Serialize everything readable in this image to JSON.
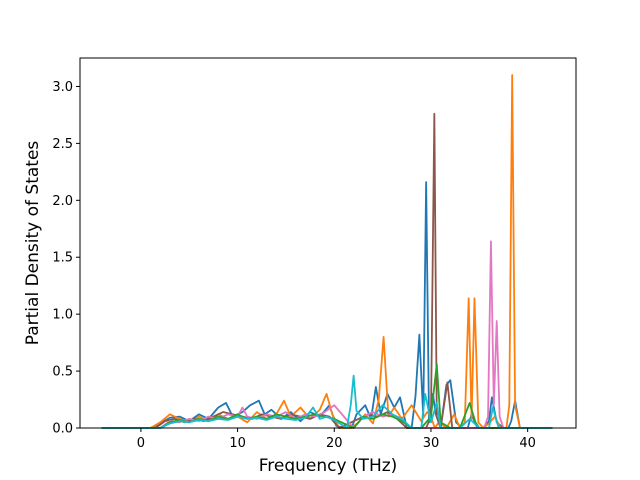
{
  "chart_data": {
    "type": "line",
    "title": "",
    "xlabel": "Frequency (THz)",
    "ylabel": "Partial Density of States",
    "xlim": [
      -6.3,
      45.0
    ],
    "ylim": [
      0.0,
      3.25
    ],
    "xticks": [
      0,
      10,
      20,
      30,
      40
    ],
    "yticks": [
      0.0,
      0.5,
      1.0,
      1.5,
      2.0,
      2.5,
      3.0
    ],
    "xtick_labels": [
      "0",
      "10",
      "20",
      "30",
      "40"
    ],
    "ytick_labels": [
      "0.0",
      "0.5",
      "1.0",
      "1.5",
      "2.0",
      "2.5",
      "3.0"
    ],
    "grid": false,
    "legend": "none",
    "series": [
      {
        "color": "#1f77b4",
        "x": [
          -4.0,
          1.0,
          2.0,
          3.0,
          4.0,
          5.0,
          6.0,
          7.0,
          8.0,
          8.8,
          9.5,
          10.5,
          11.3,
          12.2,
          12.8,
          13.5,
          14.5,
          15.5,
          16.5,
          17.5,
          18.5,
          19.5,
          20.2,
          21.0,
          21.8,
          22.3,
          23.2,
          23.8,
          24.3,
          24.8,
          25.5,
          26.2,
          26.8,
          27.5,
          28.0,
          28.4,
          28.8,
          29.2,
          29.5,
          29.8,
          30.2,
          30.5,
          31.0,
          31.6,
          32.0,
          32.6,
          33.2,
          33.8,
          34.2,
          34.8,
          35.4,
          36.0,
          36.3,
          36.8,
          37.5,
          38.0,
          38.3,
          38.7,
          39.2,
          40.0,
          42.5
        ],
        "y": [
          0.0,
          0.0,
          0.04,
          0.09,
          0.1,
          0.06,
          0.12,
          0.08,
          0.18,
          0.22,
          0.1,
          0.14,
          0.2,
          0.24,
          0.12,
          0.16,
          0.08,
          0.14,
          0.06,
          0.14,
          0.1,
          0.2,
          0.02,
          0.0,
          0.0,
          0.12,
          0.2,
          0.08,
          0.36,
          0.12,
          0.3,
          0.18,
          0.27,
          0.0,
          0.0,
          0.28,
          0.82,
          0.1,
          2.16,
          0.05,
          0.3,
          0.12,
          0.0,
          0.38,
          0.42,
          0.05,
          0.0,
          0.0,
          0.12,
          0.0,
          0.0,
          0.06,
          0.27,
          0.05,
          0.0,
          0.0,
          0.06,
          0.24,
          0.0,
          0.0,
          0.0
        ]
      },
      {
        "color": "#ff7f0e",
        "x": [
          -4.0,
          1.0,
          2.0,
          3.0,
          4.0,
          5.0,
          6.0,
          7.0,
          8.0,
          9.0,
          10.0,
          11.0,
          12.0,
          13.0,
          14.0,
          14.8,
          15.5,
          16.5,
          17.5,
          18.5,
          19.2,
          19.8,
          20.5,
          21.8,
          22.5,
          23.2,
          24.0,
          24.6,
          25.1,
          25.6,
          26.2,
          27.0,
          28.0,
          29.0,
          29.6,
          30.0,
          30.4,
          30.8,
          31.6,
          32.4,
          33.0,
          33.5,
          33.9,
          34.2,
          34.5,
          34.9,
          35.4,
          36.0,
          36.6,
          37.2,
          37.8,
          38.1,
          38.4,
          38.7,
          39.2,
          40.0,
          42.5
        ],
        "y": [
          0.0,
          0.0,
          0.05,
          0.12,
          0.08,
          0.05,
          0.1,
          0.06,
          0.12,
          0.08,
          0.1,
          0.05,
          0.14,
          0.08,
          0.12,
          0.24,
          0.1,
          0.18,
          0.08,
          0.16,
          0.3,
          0.12,
          0.0,
          0.0,
          0.05,
          0.12,
          0.04,
          0.25,
          0.8,
          0.1,
          0.18,
          0.08,
          0.2,
          0.06,
          0.14,
          0.1,
          0.0,
          0.05,
          0.0,
          0.12,
          0.0,
          0.05,
          1.14,
          0.08,
          1.14,
          0.05,
          0.0,
          0.04,
          0.1,
          0.0,
          0.0,
          0.2,
          3.1,
          0.2,
          0.0,
          0.0,
          0.0
        ]
      },
      {
        "color": "#8c564b",
        "x": [
          -4.0,
          1.5,
          2.5,
          3.5,
          4.5,
          5.5,
          6.5,
          7.5,
          8.5,
          9.5,
          10.5,
          11.5,
          12.5,
          13.5,
          14.5,
          15.5,
          16.5,
          17.5,
          18.5,
          19.5,
          20.5,
          22.5,
          23.5,
          24.5,
          25.5,
          26.5,
          27.5,
          28.5,
          29.5,
          30.0,
          30.35,
          30.6,
          31.0,
          31.7,
          32.2,
          33.0,
          34.0,
          35.0,
          36.0,
          37.0,
          38.0,
          40.0,
          42.5
        ],
        "y": [
          0.0,
          0.0,
          0.06,
          0.08,
          0.05,
          0.08,
          0.06,
          0.1,
          0.14,
          0.12,
          0.1,
          0.08,
          0.12,
          0.1,
          0.08,
          0.12,
          0.1,
          0.08,
          0.12,
          0.1,
          0.0,
          0.08,
          0.12,
          0.1,
          0.14,
          0.08,
          0.0,
          0.0,
          0.0,
          0.1,
          2.76,
          0.1,
          0.0,
          0.4,
          0.0,
          0.0,
          0.0,
          0.0,
          0.0,
          0.0,
          0.0,
          0.0,
          0.0
        ]
      },
      {
        "color": "#e377c2",
        "x": [
          -4.0,
          2.0,
          3.0,
          4.0,
          5.0,
          6.0,
          7.0,
          8.0,
          9.0,
          10.0,
          10.5,
          11.0,
          12.0,
          13.0,
          14.0,
          15.0,
          16.0,
          17.0,
          18.0,
          19.0,
          20.0,
          22.0,
          23.0,
          24.0,
          25.0,
          26.0,
          27.0,
          28.0,
          29.5,
          30.5,
          31.5,
          32.5,
          33.5,
          34.5,
          35.5,
          35.9,
          36.2,
          36.5,
          36.8,
          37.1,
          37.5,
          38.5,
          40.0,
          42.5
        ],
        "y": [
          0.0,
          0.0,
          0.06,
          0.05,
          0.08,
          0.06,
          0.1,
          0.08,
          0.12,
          0.1,
          0.18,
          0.1,
          0.08,
          0.12,
          0.1,
          0.14,
          0.08,
          0.12,
          0.1,
          0.14,
          0.2,
          0.0,
          0.1,
          0.14,
          0.1,
          0.12,
          0.06,
          0.0,
          0.0,
          0.0,
          0.0,
          0.0,
          0.0,
          0.0,
          0.0,
          0.1,
          1.64,
          0.2,
          0.94,
          0.1,
          0.0,
          0.0,
          0.0,
          0.0
        ]
      },
      {
        "color": "#2ca02c",
        "x": [
          -4.0,
          2.0,
          3.0,
          4.0,
          5.0,
          6.0,
          7.0,
          8.0,
          9.0,
          10.0,
          11.0,
          12.0,
          13.0,
          14.0,
          15.0,
          16.0,
          17.0,
          18.0,
          19.0,
          20.0,
          22.0,
          23.0,
          24.0,
          25.0,
          26.0,
          27.0,
          28.0,
          29.0,
          30.0,
          30.6,
          31.0,
          32.0,
          33.0,
          34.0,
          34.6,
          35.0,
          36.0,
          37.0,
          38.0,
          40.0,
          42.5
        ],
        "y": [
          0.0,
          0.0,
          0.05,
          0.07,
          0.05,
          0.08,
          0.06,
          0.1,
          0.08,
          0.12,
          0.08,
          0.1,
          0.08,
          0.12,
          0.1,
          0.08,
          0.1,
          0.12,
          0.1,
          0.08,
          0.0,
          0.1,
          0.08,
          0.12,
          0.1,
          0.06,
          0.0,
          0.0,
          0.1,
          0.56,
          0.05,
          0.0,
          0.0,
          0.22,
          0.05,
          0.0,
          0.0,
          0.0,
          0.0,
          0.0,
          0.0
        ]
      },
      {
        "color": "#17becf",
        "x": [
          -4.0,
          2.0,
          3.0,
          4.0,
          5.0,
          6.0,
          7.0,
          8.0,
          9.0,
          10.0,
          11.0,
          12.0,
          13.0,
          14.0,
          15.0,
          16.0,
          17.0,
          17.8,
          18.5,
          19.2,
          20.0,
          21.3,
          21.7,
          22.0,
          22.3,
          23.0,
          24.0,
          25.0,
          26.0,
          27.0,
          28.0,
          29.0,
          29.4,
          30.0,
          30.6,
          31.0,
          32.0,
          33.0,
          34.0,
          35.0,
          36.0,
          36.4,
          37.0,
          38.0,
          40.0,
          42.5
        ],
        "y": [
          0.0,
          0.0,
          0.04,
          0.06,
          0.05,
          0.07,
          0.06,
          0.08,
          0.07,
          0.1,
          0.08,
          0.09,
          0.07,
          0.1,
          0.08,
          0.07,
          0.09,
          0.18,
          0.08,
          0.1,
          0.07,
          0.0,
          0.2,
          0.46,
          0.15,
          0.08,
          0.1,
          0.2,
          0.12,
          0.08,
          0.0,
          0.0,
          0.3,
          0.05,
          0.22,
          0.0,
          0.0,
          0.0,
          0.08,
          0.0,
          0.0,
          0.18,
          0.0,
          0.0,
          0.0,
          0.0
        ]
      }
    ]
  }
}
